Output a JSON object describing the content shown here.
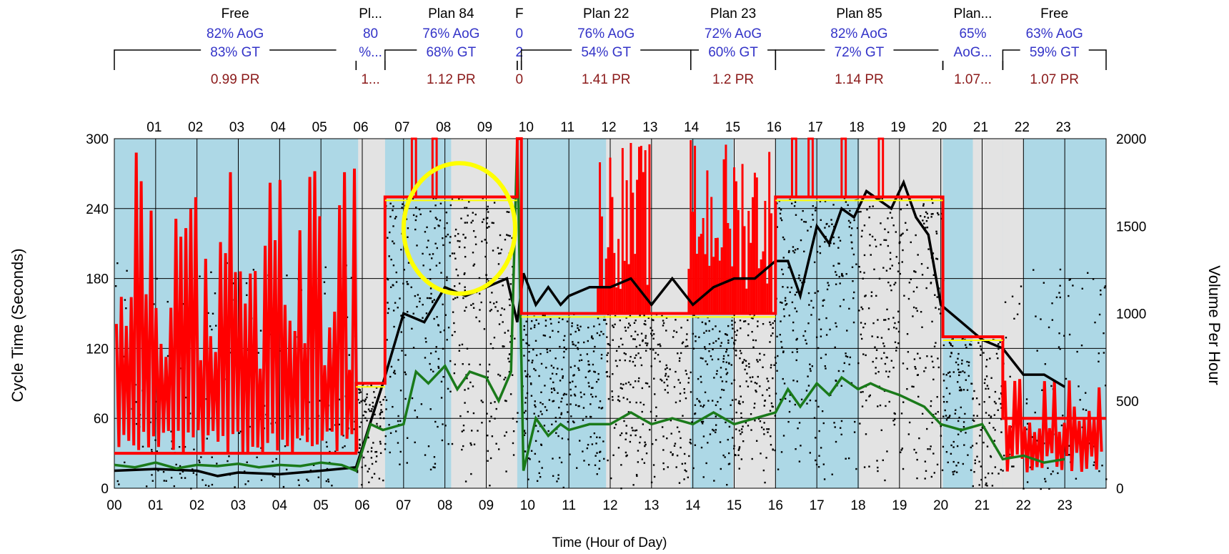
{
  "chart_data": {
    "type": "scatter",
    "xlabel": "Time (Hour of Day)",
    "ylabel_left": "Cycle Time (Seconds)",
    "ylabel_right": "Volume Per Hour",
    "xlim": [
      0,
      24
    ],
    "ylim_left": [
      0,
      300
    ],
    "ylim_right": [
      0,
      2000
    ],
    "x_ticks_bottom": [
      "00",
      "01",
      "02",
      "03",
      "04",
      "05",
      "06",
      "07",
      "08",
      "09",
      "10",
      "11",
      "12",
      "13",
      "14",
      "15",
      "16",
      "17",
      "18",
      "19",
      "20",
      "21",
      "22",
      "23"
    ],
    "x_ticks_top": [
      "01",
      "02",
      "03",
      "04",
      "05",
      "06",
      "07",
      "08",
      "09",
      "10",
      "11",
      "12",
      "13",
      "14",
      "15",
      "16",
      "17",
      "18",
      "19",
      "20",
      "21",
      "22",
      "23"
    ],
    "y_ticks_left": [
      0,
      60,
      120,
      180,
      240,
      300
    ],
    "y_ticks_right": [
      0,
      500,
      1000,
      1500,
      2000
    ],
    "grid": true,
    "plans": [
      {
        "name": "Free",
        "aog": "82% AoG",
        "gt": "83% GT",
        "pr": "0.99 PR",
        "start": 0.0,
        "end": 5.85,
        "cycle": 0
      },
      {
        "name": "Pl...",
        "aog": "80",
        "gt": "%...",
        "pr": "1...",
        "start": 5.85,
        "end": 6.55,
        "cycle": 90
      },
      {
        "name": "Plan 84",
        "aog": "76% AoG",
        "gt": "68% GT",
        "pr": "1.12 PR",
        "start": 6.55,
        "end": 9.75,
        "cycle": 250
      },
      {
        "name": "F",
        "aog": "0",
        "gt": "2",
        "pr": "0",
        "start": 9.75,
        "end": 9.85,
        "cycle": 300
      },
      {
        "name": "Plan 22",
        "aog": "76% AoG",
        "gt": "54% GT",
        "pr": "1.41 PR",
        "start": 9.85,
        "end": 13.95,
        "cycle": 150
      },
      {
        "name": "Plan 23",
        "aog": "72% AoG",
        "gt": "60% GT",
        "pr": "1.2 PR",
        "start": 13.95,
        "end": 16.0,
        "cycle": 150
      },
      {
        "name": "Plan 85",
        "aog": "82% AoG",
        "gt": "72% GT",
        "pr": "1.14 PR",
        "start": 16.0,
        "end": 20.05,
        "cycle": 250
      },
      {
        "name": "Plan...",
        "aog": "65%",
        "gt": "AoG...",
        "pr": "1.07...",
        "start": 20.05,
        "end": 21.5,
        "cycle": 130
      },
      {
        "name": "Free",
        "aog": "63% AoG",
        "gt": "59% GT",
        "pr": "1.07 PR",
        "start": 21.5,
        "end": 24.0,
        "cycle": 0
      }
    ],
    "series": [
      {
        "role": "volume-per-hour",
        "color": "#000000",
        "axis": "right",
        "x": [
          0.0,
          1.0,
          2.0,
          2.5,
          3.0,
          4.0,
          5.0,
          5.85,
          6.5,
          7.0,
          7.5,
          8.0,
          8.5,
          9.0,
          9.5,
          9.75,
          9.9,
          10.2,
          10.5,
          10.8,
          11.0,
          11.5,
          12.0,
          12.5,
          13.0,
          13.5,
          14.0,
          14.5,
          15.0,
          15.5,
          16.0,
          16.3,
          16.6,
          17.0,
          17.3,
          17.6,
          17.9,
          18.2,
          18.5,
          18.8,
          19.1,
          19.4,
          19.7,
          20.0,
          20.5,
          21.0,
          21.5,
          22.0,
          22.5,
          23.0
        ],
        "y": [
          100,
          110,
          100,
          70,
          90,
          80,
          100,
          120,
          600,
          1000,
          950,
          1150,
          1100,
          1150,
          1200,
          950,
          1230,
          1050,
          1150,
          1050,
          1100,
          1150,
          1150,
          1200,
          1050,
          1200,
          1050,
          1150,
          1200,
          1200,
          1300,
          1300,
          1100,
          1500,
          1400,
          1600,
          1550,
          1700,
          1650,
          1600,
          1750,
          1550,
          1450,
          1050,
          950,
          850,
          800,
          650,
          650,
          580
        ]
      },
      {
        "role": "green-time",
        "color": "#1a7a1a",
        "axis": "left",
        "x": [
          0.0,
          0.5,
          1.0,
          1.5,
          2.0,
          2.5,
          3.0,
          3.5,
          4.0,
          4.5,
          5.0,
          5.5,
          5.85,
          6.2,
          6.5,
          7.0,
          7.3,
          7.6,
          8.0,
          8.3,
          8.6,
          9.0,
          9.3,
          9.6,
          9.75,
          9.9,
          10.2,
          10.5,
          10.8,
          11.0,
          11.5,
          12.0,
          12.5,
          13.0,
          13.5,
          14.0,
          14.5,
          15.0,
          15.5,
          16.0,
          16.3,
          16.6,
          17.0,
          17.3,
          17.6,
          18.0,
          18.3,
          18.6,
          19.0,
          19.3,
          19.6,
          20.0,
          20.5,
          21.0,
          21.5,
          22.0,
          22.5,
          23.0
        ],
        "y": [
          20,
          18,
          22,
          17,
          20,
          19,
          21,
          18,
          20,
          19,
          22,
          20,
          15,
          55,
          50,
          55,
          100,
          90,
          105,
          85,
          100,
          95,
          75,
          100,
          300,
          15,
          60,
          45,
          55,
          50,
          55,
          55,
          65,
          55,
          60,
          55,
          65,
          55,
          60,
          65,
          85,
          70,
          90,
          80,
          95,
          85,
          90,
          85,
          80,
          75,
          70,
          55,
          50,
          55,
          25,
          28,
          22,
          25
        ]
      },
      {
        "role": "max-cycle-envelope",
        "color": "#ff0000",
        "axis": "left",
        "x": [
          0.0,
          5.85,
          5.85,
          6.55,
          6.55,
          9.75,
          9.75,
          9.85,
          9.85,
          13.95,
          13.95,
          16.0,
          16.0,
          20.05,
          20.05,
          21.5,
          21.5,
          24.0
        ],
        "y": [
          30,
          30,
          90,
          90,
          250,
          250,
          300,
          300,
          150,
          150,
          150,
          150,
          250,
          250,
          130,
          130,
          60,
          60
        ]
      }
    ],
    "annotations": [
      {
        "type": "ellipse",
        "color": "#ffff00",
        "center_x": 8.35,
        "center_y_seconds": 223,
        "radius_x_hours": 2.7,
        "radius_y_seconds": 56
      }
    ]
  }
}
